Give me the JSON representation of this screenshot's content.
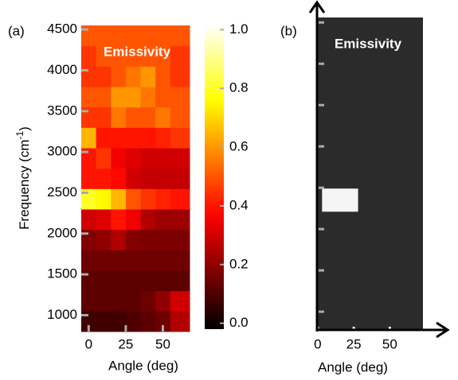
{
  "chart_data": [
    {
      "type": "heatmap",
      "panel_label": "(a)",
      "title": "Emissivity",
      "xlabel": "Angle (deg)",
      "ylabel": "Frequency (cm",
      "ylabel_sup": "-1",
      "ylabel_end": ")",
      "colormap": "hot",
      "x_edges": [
        -5,
        5,
        15,
        25,
        35,
        45,
        55,
        68
      ],
      "y_edges": [
        800,
        1050,
        1300,
        1550,
        1800,
        2050,
        2300,
        2550,
        2800,
        3050,
        3300,
        3550,
        3800,
        4050,
        4300,
        4550
      ],
      "z": [
        [
          0.08,
          0.08,
          0.08,
          0.1,
          0.12,
          0.15,
          0.25
        ],
        [
          0.12,
          0.12,
          0.12,
          0.12,
          0.15,
          0.2,
          0.3
        ],
        [
          0.12,
          0.12,
          0.12,
          0.12,
          0.12,
          0.12,
          0.12
        ],
        [
          0.15,
          0.15,
          0.15,
          0.15,
          0.15,
          0.15,
          0.15
        ],
        [
          0.18,
          0.2,
          0.25,
          0.18,
          0.17,
          0.17,
          0.17
        ],
        [
          0.3,
          0.32,
          0.4,
          0.35,
          0.25,
          0.22,
          0.22
        ],
        [
          0.8,
          0.75,
          0.65,
          0.5,
          0.45,
          0.42,
          0.4
        ],
        [
          0.4,
          0.4,
          0.38,
          0.3,
          0.28,
          0.28,
          0.28
        ],
        [
          0.4,
          0.45,
          0.35,
          0.32,
          0.3,
          0.3,
          0.3
        ],
        [
          0.65,
          0.4,
          0.4,
          0.4,
          0.4,
          0.42,
          0.45
        ],
        [
          0.45,
          0.45,
          0.55,
          0.5,
          0.5,
          0.55,
          0.5
        ],
        [
          0.5,
          0.5,
          0.6,
          0.6,
          0.55,
          0.5,
          0.5
        ],
        [
          0.45,
          0.45,
          0.5,
          0.55,
          0.6,
          0.5,
          0.45
        ],
        [
          0.45,
          0.5,
          0.5,
          0.5,
          0.5,
          0.5,
          0.45
        ],
        [
          0.5,
          0.5,
          0.5,
          0.5,
          0.5,
          0.5,
          0.5
        ]
      ],
      "xlim": [
        -5,
        68
      ],
      "xticks": [
        0,
        25,
        50
      ],
      "ylim": [
        800,
        4550
      ],
      "yticks": [
        1000,
        1500,
        2000,
        2500,
        3000,
        3500,
        4000,
        4500
      ],
      "clim": [
        -0.02,
        1.02
      ],
      "cticks": [
        {
          "value": 0,
          "label": "0.0"
        },
        0.2,
        0.4,
        0.6,
        0.8,
        {
          "value": 1,
          "label": "1.0"
        }
      ]
    },
    {
      "type": "region",
      "panel_label": "(b)",
      "title": "Emissivity",
      "xlabel": "Angle (deg)",
      "background": "#2b2b2b",
      "color": "#f5f5f5",
      "regions": [
        {
          "x": [
            3,
            28
          ],
          "y": [
            2210,
            2490
          ]
        }
      ],
      "xlim": [
        -0.5,
        73
      ],
      "xticks": [
        0,
        25,
        50
      ],
      "ylim": [
        780,
        4560
      ],
      "yticks": [
        1000,
        1500,
        2000,
        2500,
        3000,
        3500,
        4000,
        4500
      ],
      "ytick_labels": false
    }
  ]
}
